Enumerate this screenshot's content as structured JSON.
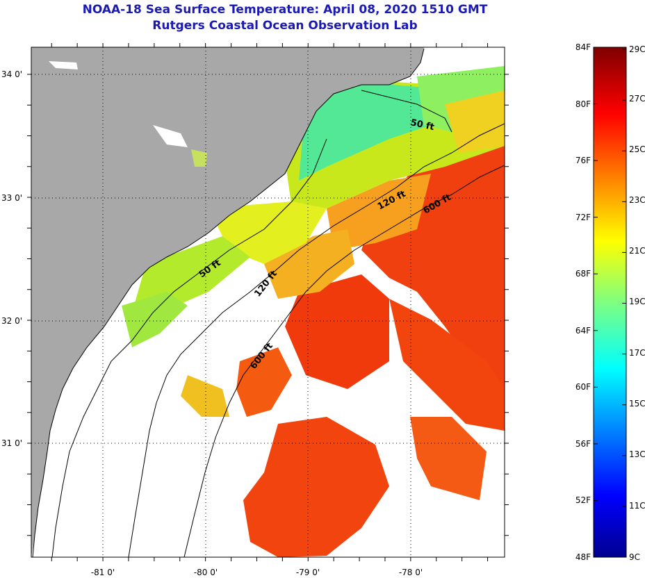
{
  "title": "NOAA-18 Sea Surface Temperature:  April 08, 2020 1510 GMT",
  "subtitle": "Rutgers Coastal Ocean Observation Lab",
  "map": {
    "lat_labels": [
      "34 0'",
      "33 0'",
      "32 0'",
      "31 0'"
    ],
    "lon_labels": [
      "-81 0'",
      "-80 0'",
      "-79 0'",
      "-78 0'"
    ],
    "contour_labels": [
      "50 ft",
      "120 ft",
      "600 ft",
      "50 ft",
      "120 ft",
      "600 ft"
    ],
    "colors": {
      "land": "#a8a8a8",
      "cloud": "#ffffff",
      "frame": "#000000"
    }
  },
  "colorbar": {
    "fahrenheit": [
      "84F",
      "80F",
      "76F",
      "72F",
      "68F",
      "64F",
      "60F",
      "56F",
      "52F",
      "48F"
    ],
    "celsius": [
      "29C",
      "27C",
      "25C",
      "23C",
      "21C",
      "19C",
      "17C",
      "15C",
      "13C",
      "11C",
      "9C"
    ]
  }
}
